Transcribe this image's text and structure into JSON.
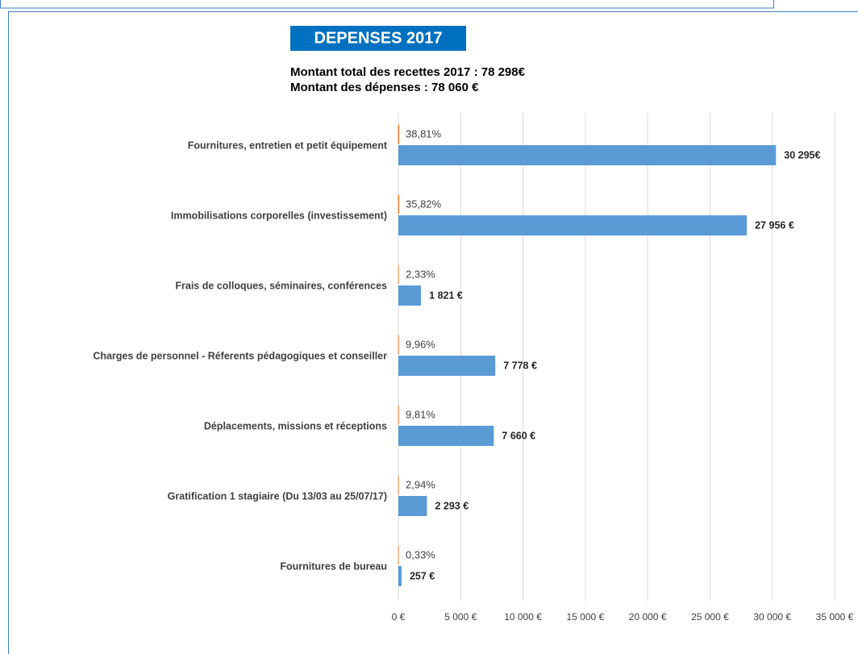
{
  "chart_data": {
    "type": "barh",
    "title": "DEPENSES 2017",
    "subtitle": [
      "Montant total des recettes 2017 : 78 298€",
      "Montant des dépenses : 78 060 €"
    ],
    "categories": [
      "Fournitures, entretien et petit équipement",
      "Immobilisations corporelles (investissement)",
      "Frais de colloques, séminaires, conférences",
      "Charges de personnel - Réferents pédagogiques et conseiller",
      "Déplacements, missions et réceptions",
      "Gratification 1 stagiaire (Du 13/03 au 25/07/17)",
      "Fournitures de bureau"
    ],
    "series": [
      {
        "color": "#ed7d31",
        "values": [
          38.81,
          35.82,
          2.33,
          9.96,
          9.81,
          2.94,
          0.33
        ],
        "value_labels": [
          "38,81%",
          "35,82%",
          "2,33%",
          "9,96%",
          "9,81%",
          "2,94%",
          "0,33%"
        ]
      },
      {
        "color": "#5b9bd5",
        "values": [
          30295,
          27956,
          1821,
          7778,
          7660,
          2293,
          257
        ],
        "value_labels": [
          "30 295€",
          "27 956 €",
          "1 821 €",
          "7 778 €",
          "7 660 €",
          "2 293 €",
          "257 €"
        ]
      }
    ],
    "xlim": [
      0,
      35000
    ],
    "xticks": [
      {
        "value": 0,
        "label": "0 €"
      },
      {
        "value": 5000,
        "label": "5 000 €"
      },
      {
        "value": 10000,
        "label": "10 000 €"
      },
      {
        "value": 15000,
        "label": "15 000 €"
      },
      {
        "value": 20000,
        "label": "20 000 €"
      },
      {
        "value": 25000,
        "label": "25 000 €"
      },
      {
        "value": 30000,
        "label": "30 000 €"
      },
      {
        "value": 35000,
        "label": "35 000 €"
      }
    ],
    "grid": true
  }
}
